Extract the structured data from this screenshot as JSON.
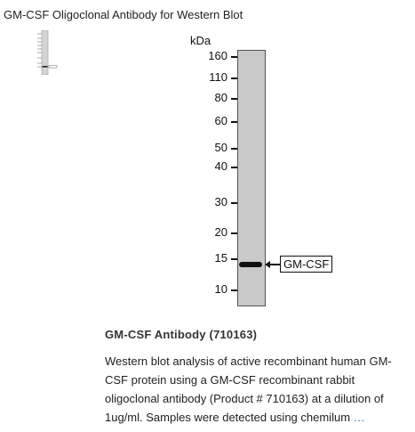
{
  "page": {
    "title": "GM-CSF Oligoclonal Antibody for Western Blot"
  },
  "thumbnail": {
    "icon": "western-blot-thumbnail-icon"
  },
  "blot": {
    "unit": "kDa",
    "markers": [
      "160",
      "110",
      "80",
      "60",
      "50",
      "40",
      "30",
      "20",
      "15",
      "10"
    ],
    "band_label": "GM-CSF",
    "band_marker_position_kda": 14
  },
  "product": {
    "title": "GM-CSF Antibody (710163)",
    "description": "Western blot analysis of active recombinant human GM-CSF protein using a GM-CSF recombinant rabbit oligoclonal antibody (Product # 710163) at a dilution of 1ug/ml. Samples were detected using chemilum",
    "more_label": "…"
  }
}
